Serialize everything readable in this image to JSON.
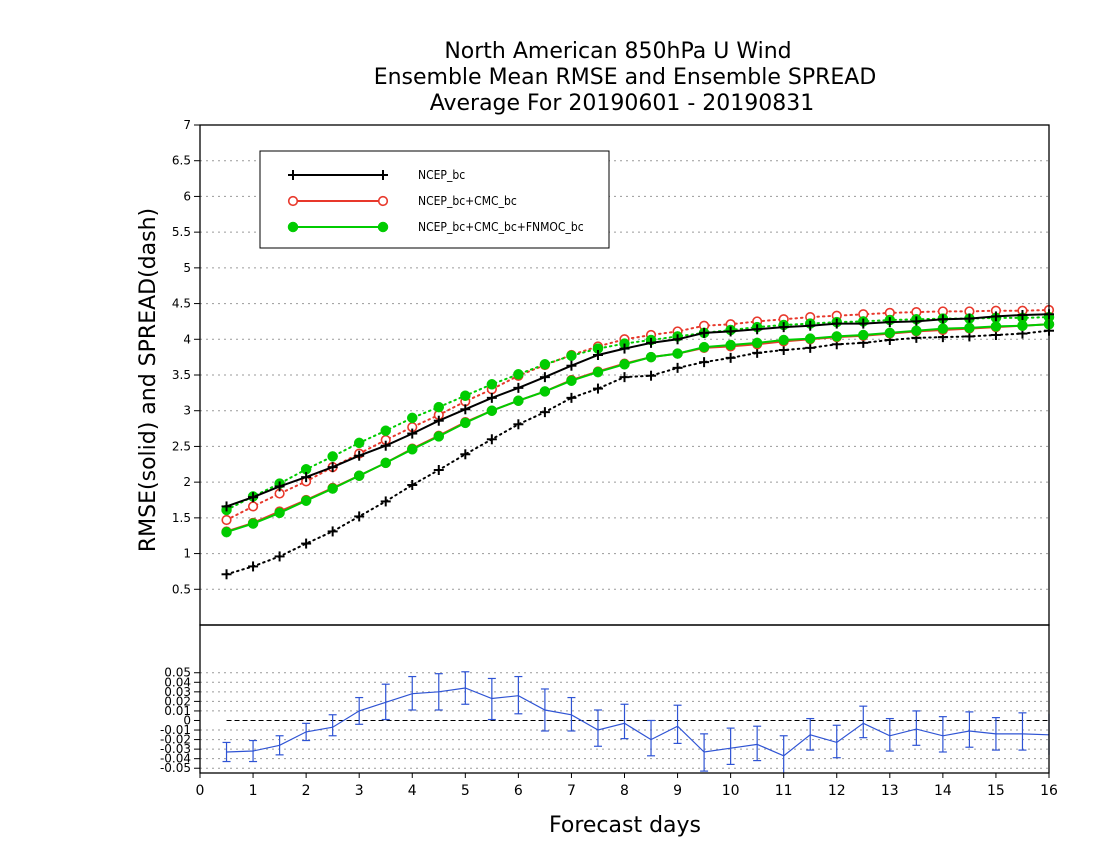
{
  "title_lines": [
    "North American 850hPa U Wind",
    "Ensemble Mean RMSE and Ensemble SPREAD",
    "Average For 20190601 - 20190831"
  ],
  "colors": {
    "NCEP_bc": "#000000",
    "NCEP_bc+CMC_bc": "#e8382b",
    "NCEP_bc+CMC_bc+FNMOC_bc": "#00cc00",
    "difference": "#2f54d4"
  },
  "chart_data": [
    {
      "type": "line",
      "ylabel": "RMSE(solid) and SPREAD(dash)",
      "xlim": [
        0,
        16
      ],
      "ylim": [
        0,
        7
      ],
      "yticks": [
        "0.5",
        "1",
        "1.5",
        "2",
        "2.5",
        "3",
        "3.5",
        "4",
        "4.5",
        "5",
        "5.5",
        "6",
        "6.5",
        "7"
      ],
      "grid": true,
      "legend_position": "top-left",
      "legend": [
        {
          "label": "NCEP_bc",
          "color": "#000000",
          "marker": "plus"
        },
        {
          "label": "NCEP_bc+CMC_bc",
          "color": "#e8382b",
          "marker": "open-circle"
        },
        {
          "label": "NCEP_bc+CMC_bc+FNMOC_bc",
          "color": "#00cc00",
          "marker": "filled-circle"
        }
      ],
      "x": [
        0.5,
        1.0,
        1.5,
        2.0,
        2.5,
        3.0,
        3.5,
        4.0,
        4.5,
        5.0,
        5.5,
        6.0,
        6.5,
        7.0,
        7.5,
        8.0,
        8.5,
        9.0,
        9.5,
        10.0,
        10.5,
        11.0,
        11.5,
        12.0,
        12.5,
        13.0,
        13.5,
        14.0,
        14.5,
        15.0,
        15.5,
        16.0
      ],
      "series": [
        {
          "name": "NCEP_bc",
          "kind": "RMSE",
          "style": "solid",
          "color": "#000000",
          "marker": "plus",
          "values": [
            1.66,
            1.79,
            1.94,
            2.07,
            2.21,
            2.37,
            2.51,
            2.68,
            2.86,
            3.02,
            3.18,
            3.32,
            3.47,
            3.63,
            3.78,
            3.87,
            3.95,
            4.0,
            4.09,
            4.11,
            4.14,
            4.17,
            4.19,
            4.22,
            4.22,
            4.24,
            4.25,
            4.28,
            4.29,
            4.32,
            4.34,
            4.35
          ]
        },
        {
          "name": "NCEP_bc+CMC_bc",
          "kind": "RMSE",
          "style": "solid",
          "color": "#e8382b",
          "marker": "open-circle",
          "values": [
            1.31,
            1.43,
            1.59,
            1.75,
            1.92,
            2.09,
            2.27,
            2.47,
            2.65,
            2.84,
            3.0,
            3.14,
            3.27,
            3.43,
            3.55,
            3.66,
            3.75,
            3.8,
            3.88,
            3.9,
            3.93,
            3.97,
            4.0,
            4.03,
            4.05,
            4.08,
            4.11,
            4.13,
            4.15,
            4.17,
            4.19,
            4.21
          ]
        },
        {
          "name": "NCEP_bc+CMC_bc+FNMOC_bc",
          "kind": "RMSE",
          "style": "solid",
          "color": "#00cc00",
          "marker": "filled-circle",
          "values": [
            1.3,
            1.42,
            1.57,
            1.74,
            1.91,
            2.09,
            2.27,
            2.46,
            2.64,
            2.83,
            3.0,
            3.14,
            3.27,
            3.42,
            3.54,
            3.65,
            3.75,
            3.8,
            3.89,
            3.92,
            3.95,
            3.99,
            4.01,
            4.04,
            4.06,
            4.09,
            4.12,
            4.15,
            4.16,
            4.18,
            4.19,
            4.21
          ]
        },
        {
          "name": "NCEP_bc",
          "kind": "SPREAD",
          "style": "dotted",
          "color": "#000000",
          "marker": "plus",
          "values": [
            0.71,
            0.82,
            0.96,
            1.14,
            1.31,
            1.52,
            1.73,
            1.96,
            2.17,
            2.39,
            2.6,
            2.81,
            2.98,
            3.18,
            3.31,
            3.47,
            3.49,
            3.6,
            3.68,
            3.74,
            3.81,
            3.85,
            3.88,
            3.93,
            3.95,
            3.99,
            4.02,
            4.03,
            4.04,
            4.06,
            4.08,
            4.12
          ]
        },
        {
          "name": "NCEP_bc+CMC_bc",
          "kind": "SPREAD",
          "style": "dotted",
          "color": "#e8382b",
          "marker": "open-circle",
          "values": [
            1.47,
            1.66,
            1.84,
            2.01,
            2.21,
            2.4,
            2.59,
            2.77,
            2.94,
            3.13,
            3.3,
            3.49,
            3.64,
            3.78,
            3.9,
            4.0,
            4.06,
            4.11,
            4.19,
            4.21,
            4.25,
            4.28,
            4.31,
            4.33,
            4.35,
            4.37,
            4.38,
            4.39,
            4.39,
            4.4,
            4.4,
            4.41
          ]
        },
        {
          "name": "NCEP_bc+CMC_bc+FNMOC_bc",
          "kind": "SPREAD",
          "style": "dotted",
          "color": "#00cc00",
          "marker": "filled-circle",
          "values": [
            1.61,
            1.8,
            1.98,
            2.18,
            2.36,
            2.55,
            2.72,
            2.9,
            3.05,
            3.21,
            3.37,
            3.51,
            3.65,
            3.77,
            3.87,
            3.94,
            3.99,
            4.04,
            4.09,
            4.13,
            4.17,
            4.2,
            4.22,
            4.24,
            4.25,
            4.27,
            4.28,
            4.29,
            4.29,
            4.3,
            4.3,
            4.31
          ]
        }
      ]
    },
    {
      "type": "line",
      "xlabel": "Forecast days",
      "xlim": [
        0,
        16
      ],
      "ylim": [
        -0.055,
        0.1
      ],
      "yticks": [
        "-0.05",
        "-0.04",
        "-0.03",
        "-0.02",
        "-0.01",
        "0",
        "0.01",
        "0.02",
        "0.03",
        "0.04",
        "0.05"
      ],
      "xticks": [
        "0",
        "1",
        "2",
        "3",
        "4",
        "5",
        "6",
        "7",
        "8",
        "9",
        "10",
        "11",
        "12",
        "13",
        "14",
        "15",
        "16"
      ],
      "grid": true,
      "reference_line": 0,
      "x": [
        0.5,
        1.0,
        1.5,
        2.0,
        2.5,
        3.0,
        3.5,
        4.0,
        4.5,
        5.0,
        5.5,
        6.0,
        6.5,
        7.0,
        7.5,
        8.0,
        8.5,
        9.0,
        9.5,
        10.0,
        10.5,
        11.0,
        11.5,
        12.0,
        12.5,
        13.0,
        13.5,
        14.0,
        14.5,
        15.0,
        15.5,
        16.0
      ],
      "values": [
        -0.033,
        -0.032,
        -0.026,
        -0.012,
        -0.007,
        0.01,
        0.019,
        0.028,
        0.03,
        0.034,
        0.023,
        0.026,
        0.011,
        0.006,
        -0.01,
        -0.003,
        -0.02,
        -0.006,
        -0.033,
        -0.029,
        -0.025,
        -0.037,
        -0.015,
        -0.023,
        -0.003,
        -0.016,
        -0.009,
        -0.016,
        -0.011,
        -0.014,
        -0.014,
        -0.015
      ],
      "error_low": [
        -0.043,
        -0.043,
        -0.036,
        -0.021,
        -0.016,
        -0.004,
        0.001,
        0.011,
        0.011,
        0.017,
        0.001,
        0.007,
        -0.011,
        -0.011,
        -0.027,
        -0.019,
        -0.037,
        -0.024,
        -0.053,
        -0.046,
        -0.042,
        -0.055,
        -0.031,
        -0.039,
        -0.018,
        -0.032,
        -0.026,
        -0.033,
        -0.028,
        -0.031,
        -0.031,
        -0.036
      ],
      "error_high": [
        -0.023,
        -0.021,
        -0.016,
        -0.003,
        0.006,
        0.024,
        0.038,
        0.046,
        0.049,
        0.051,
        0.044,
        0.046,
        0.033,
        0.024,
        0.011,
        0.017,
        0.0,
        0.016,
        -0.014,
        -0.008,
        -0.006,
        -0.016,
        0.002,
        -0.005,
        0.015,
        0.002,
        0.01,
        0.004,
        0.009,
        0.003,
        0.008,
        0.007
      ]
    }
  ]
}
